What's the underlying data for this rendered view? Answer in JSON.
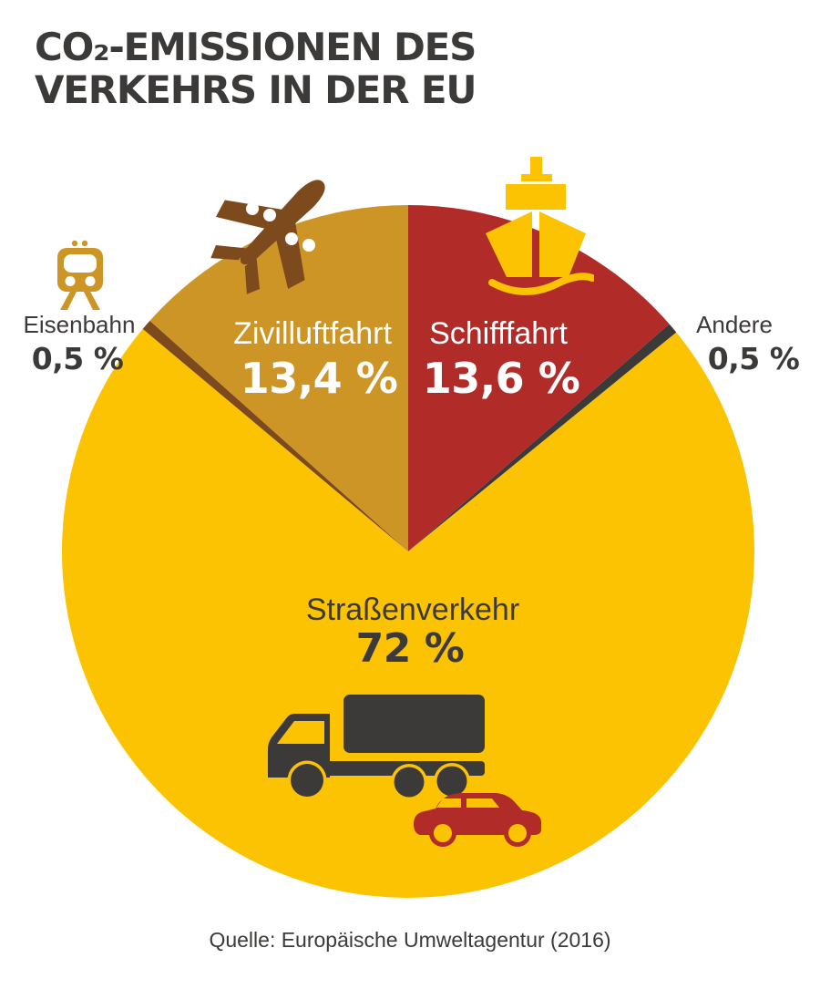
{
  "chart_data": {
    "type": "pie",
    "title": "CO₂-EMISSIONEN DES VERKEHRS IN DER EU",
    "source": "Quelle: Europäische Umweltagentur (2016)",
    "unit": "%",
    "start_angle_deg": 0,
    "direction": "clockwise",
    "legend_position": "on-chart",
    "segments": [
      {
        "label": "Schifffahrt",
        "value": 13.6,
        "display_value": "13,6 %",
        "color": "#b12c29",
        "text_color": "#ffffff",
        "icon": "ship"
      },
      {
        "label": "Andere",
        "value": 0.5,
        "display_value": "0,5 %",
        "color": "#3c3a38",
        "text_color": "#3c3a38",
        "icon": ""
      },
      {
        "label": "Straßenverkehr",
        "value": 72,
        "display_value": "72 %",
        "color": "#fcc303",
        "text_color": "#3c3a38",
        "icon": "truck,car"
      },
      {
        "label": "Eisenbahn",
        "value": 0.5,
        "display_value": "0,5 %",
        "color": "#7d4a1e",
        "text_color": "#3c3a38",
        "icon": "train"
      },
      {
        "label": "Zivilluftfahrt",
        "value": 13.4,
        "display_value": "13,4 %",
        "color": "#cd9426",
        "text_color": "#ffffff",
        "icon": "airplane"
      }
    ]
  },
  "icons": {
    "train": {
      "name": "train-icon",
      "color": "#cd9426"
    },
    "airplane": {
      "name": "airplane-icon",
      "color": "#7d4a1e"
    },
    "ship": {
      "name": "ship-icon",
      "color": "#fcc303"
    },
    "truck": {
      "name": "truck-icon",
      "color": "#3c3a38"
    },
    "car": {
      "name": "car-icon",
      "color": "#b12c29"
    }
  },
  "colors": {
    "background": "#ffffff",
    "text_dark": "#3c3a38",
    "text_light": "#ffffff"
  }
}
